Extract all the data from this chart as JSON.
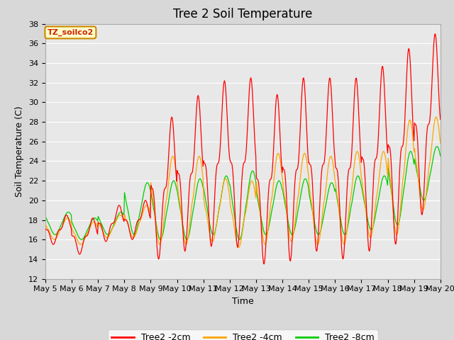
{
  "title": "Tree 2 Soil Temperature",
  "xlabel": "Time",
  "ylabel": "Soil Temperature (C)",
  "ylim": [
    12,
    38
  ],
  "annotation_text": "TZ_soilco2",
  "legend_labels": [
    "Tree2 -2cm",
    "Tree2 -4cm",
    "Tree2 -8cm"
  ],
  "line_colors": [
    "#ff0000",
    "#ffa500",
    "#00cc00"
  ],
  "xtick_labels": [
    "May 5",
    "May 6",
    "May 7",
    "May 8",
    "May 9",
    "May 10",
    "May 11",
    "May 12",
    "May 13",
    "May 14",
    "May 15",
    "May 16",
    "May 17",
    "May 18",
    "May 19",
    "May 20"
  ],
  "background_color": "#d8d8d8",
  "plot_bg_color": "#e8e8e8",
  "grid_color": "#ffffff",
  "title_fontsize": 12,
  "axis_label_fontsize": 9,
  "tick_fontsize": 8,
  "day_peaks_2cm": [
    18.5,
    18.2,
    19.5,
    20.0,
    28.5,
    30.7,
    32.2,
    32.5,
    30.8,
    32.5,
    32.5,
    32.5,
    33.7,
    35.5,
    37.0
  ],
  "day_troughs_2cm": [
    15.5,
    14.5,
    15.8,
    16.0,
    14.0,
    14.8,
    15.3,
    15.2,
    13.5,
    13.8,
    14.8,
    14.0,
    14.8,
    15.5,
    18.5
  ],
  "day_peaks_4cm": [
    18.2,
    17.8,
    18.5,
    19.5,
    24.5,
    24.5,
    22.2,
    22.0,
    24.8,
    24.8,
    24.5,
    25.0,
    25.0,
    28.2,
    28.5
  ],
  "day_troughs_4cm": [
    16.0,
    15.5,
    16.2,
    16.2,
    15.5,
    15.5,
    15.8,
    15.2,
    15.5,
    15.8,
    15.5,
    15.5,
    16.2,
    16.5,
    19.0
  ],
  "day_peaks_8cm": [
    18.8,
    18.2,
    18.8,
    21.8,
    22.0,
    22.2,
    22.5,
    23.0,
    22.0,
    22.2,
    21.8,
    22.5,
    22.5,
    25.0,
    25.5
  ],
  "day_troughs_8cm": [
    16.5,
    16.0,
    16.5,
    16.5,
    16.0,
    16.0,
    16.5,
    16.0,
    16.5,
    16.5,
    16.5,
    16.5,
    17.0,
    17.5,
    20.0
  ]
}
